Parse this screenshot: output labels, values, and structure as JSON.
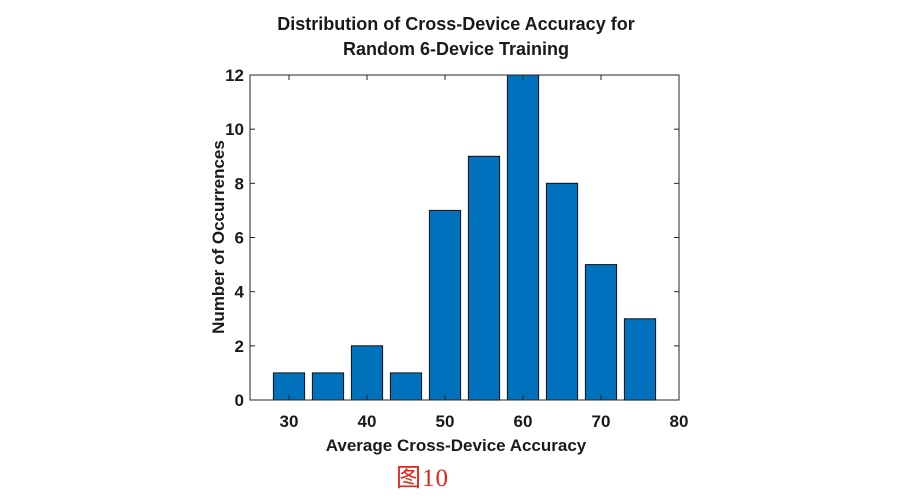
{
  "chart_data": {
    "type": "bar",
    "title": [
      "Distribution of Cross-Device Accuracy for",
      "Random 6-Device Training"
    ],
    "xlabel": "Average Cross-Device Accuracy",
    "ylabel": "Number of Occurrences",
    "x": [
      30,
      35,
      40,
      45,
      50,
      55,
      60,
      65,
      70,
      75
    ],
    "values": [
      1,
      1,
      2,
      1,
      7,
      9,
      12,
      8,
      5,
      3
    ],
    "xlim": [
      25,
      80
    ],
    "ylim": [
      0,
      12
    ],
    "xticks": [
      30,
      40,
      50,
      60,
      70,
      80
    ],
    "yticks": [
      0,
      2,
      4,
      6,
      8,
      10,
      12
    ],
    "bar_color": "#0072BD",
    "grid": false,
    "legend": "none"
  },
  "caption": "图10",
  "colors": {
    "caption": "#e2231a"
  }
}
